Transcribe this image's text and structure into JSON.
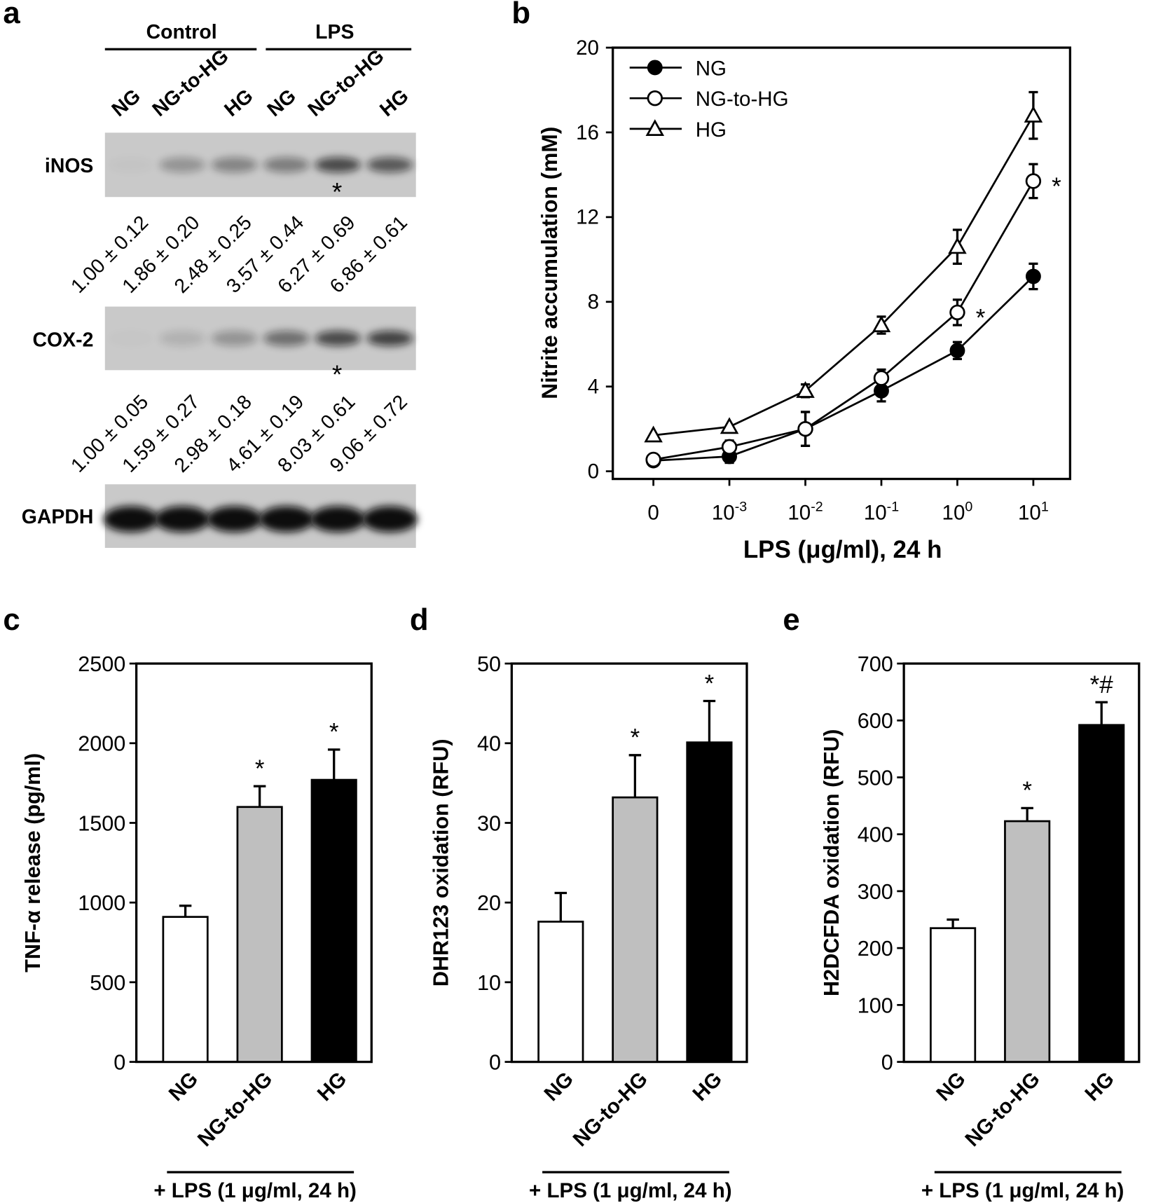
{
  "panel_labels": {
    "a": "a",
    "b": "b",
    "c": "c",
    "d": "d",
    "e": "e"
  },
  "panel_a": {
    "groups": [
      "Control",
      "LPS"
    ],
    "lanes": [
      "NG",
      "NG-to-HG",
      "HG",
      "NG",
      "NG-to-HG",
      "HG"
    ],
    "blots": [
      {
        "label": "iNOS",
        "band_intensity": [
          0.03,
          0.35,
          0.45,
          0.5,
          0.85,
          0.75
        ],
        "quant": [
          "1.00 ± 0.12",
          "1.86 ± 0.20",
          "2.48 ± 0.25",
          "3.57 ± 0.44",
          "6.27 ± 0.69",
          "6.86 ± 0.61"
        ],
        "star": "*"
      },
      {
        "label": "COX-2",
        "band_intensity": [
          0.02,
          0.15,
          0.35,
          0.6,
          0.85,
          0.9
        ],
        "quant": [
          "1.00 ± 0.05",
          "1.59 ± 0.27",
          "2.98 ± 0.18",
          "4.61 ± 0.19",
          "8.03 ± 0.61",
          "9.06 ± 0.72"
        ],
        "star": "*"
      },
      {
        "label": "GAPDH",
        "band_intensity": [
          1,
          1,
          1,
          1,
          1,
          1
        ]
      }
    ],
    "colors": {
      "membrane": "#c9c9c9",
      "band": "#0a0a0a"
    }
  },
  "chart_data": [
    {
      "panel": "b",
      "type": "line",
      "xlabel": "LPS (μg/ml), 24 h",
      "ylabel": "Nitrite accumulation (mM)",
      "x_ticks": [
        {
          "base": "0",
          "exp": ""
        },
        {
          "base": "10",
          "exp": "-3"
        },
        {
          "base": "10",
          "exp": "-2"
        },
        {
          "base": "10",
          "exp": "-1"
        },
        {
          "base": "10",
          "exp": "0"
        },
        {
          "base": "10",
          "exp": "1"
        }
      ],
      "ylim": [
        0,
        20
      ],
      "y_ticks": [
        "0",
        "4",
        "8",
        "12",
        "16",
        "20"
      ],
      "legend_position": "top-left",
      "series": [
        {
          "name": "NG",
          "marker": "filled-circle",
          "values": [
            0.5,
            0.7,
            2.0,
            3.8,
            5.7,
            9.2
          ],
          "errors": [
            0.2,
            0.3,
            0.8,
            0.5,
            0.4,
            0.6
          ]
        },
        {
          "name": "NG-to-HG",
          "marker": "open-circle",
          "values": [
            0.55,
            1.15,
            2.0,
            4.4,
            7.5,
            13.7
          ],
          "errors": [
            0.2,
            0.3,
            0.8,
            0.4,
            0.6,
            0.8
          ]
        },
        {
          "name": "HG",
          "marker": "open-triangle",
          "values": [
            1.7,
            2.1,
            3.8,
            6.9,
            10.6,
            16.8
          ],
          "errors": [
            0.1,
            0.1,
            0.3,
            0.4,
            0.8,
            1.1
          ]
        }
      ],
      "annotations": [
        {
          "series": 1,
          "index": 4,
          "text": "*"
        },
        {
          "series": 1,
          "index": 5,
          "text": "*"
        }
      ]
    },
    {
      "panel": "c",
      "type": "bar",
      "categories": [
        "NG",
        "NG-to-HG",
        "HG"
      ],
      "values": [
        910,
        1600,
        1770
      ],
      "errors": [
        70,
        130,
        190
      ],
      "annotations": [
        "",
        "*",
        "*"
      ],
      "colors": [
        "#ffffff",
        "#bfbfbf",
        "#000000"
      ],
      "ylabel": "TNF-α release (pg/ml)",
      "ylim": [
        0,
        2500
      ],
      "y_ticks": [
        "0",
        "500",
        "1000",
        "1500",
        "2000",
        "2500"
      ],
      "group_label": "+ LPS (1 μg/ml, 24 h)"
    },
    {
      "panel": "d",
      "type": "bar",
      "categories": [
        "NG",
        "NG-to-HG",
        "HG"
      ],
      "values": [
        17.6,
        33.2,
        40.1
      ],
      "errors": [
        3.6,
        5.3,
        5.2
      ],
      "annotations": [
        "",
        "*",
        "*"
      ],
      "colors": [
        "#ffffff",
        "#bfbfbf",
        "#000000"
      ],
      "ylabel": "DHR123 oxidation (RFU)",
      "ylim": [
        0,
        50
      ],
      "y_ticks": [
        "0",
        "10",
        "20",
        "30",
        "40",
        "50"
      ],
      "group_label": "+ LPS (1 μg/ml, 24 h)"
    },
    {
      "panel": "e",
      "type": "bar",
      "categories": [
        "NG",
        "NG-to-HG",
        "HG"
      ],
      "values": [
        235,
        423,
        592
      ],
      "errors": [
        15,
        23,
        40
      ],
      "annotations": [
        "",
        "*",
        "*#"
      ],
      "colors": [
        "#ffffff",
        "#bfbfbf",
        "#000000"
      ],
      "ylabel": "H2DCFDA oxidation (RFU)",
      "ylim": [
        0,
        700
      ],
      "y_ticks": [
        "0",
        "100",
        "200",
        "300",
        "400",
        "500",
        "600",
        "700"
      ],
      "group_label": "+ LPS (1 μg/ml, 24 h)"
    }
  ]
}
